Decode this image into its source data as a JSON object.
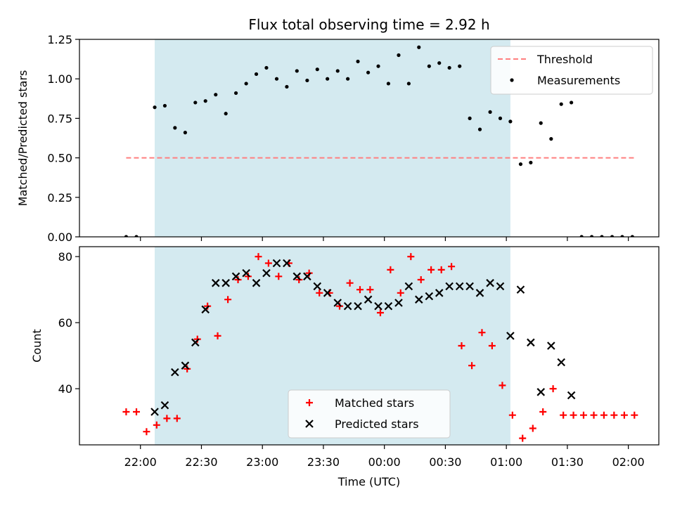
{
  "figure": {
    "title": "Flux total observing time = 2.92 h",
    "xlabel": "Time (UTC)",
    "x_ticks": [
      "22:00",
      "22:30",
      "23:00",
      "23:30",
      "00:00",
      "00:30",
      "01:00",
      "01:30",
      "02:00"
    ],
    "x_tick_hours": [
      0,
      0.5,
      1,
      1.5,
      2,
      2.5,
      3,
      3.5,
      4
    ],
    "x_origin": "22:00",
    "xlim_hours": [
      -0.5,
      4.25
    ],
    "observing_window_hours": [
      0.117,
      3.033
    ],
    "observing_window_color": "#d4eaf0"
  },
  "chart_data": [
    {
      "type": "scatter",
      "ylabel": "Matched/Predicted stars",
      "ylim": [
        0,
        1.25
      ],
      "yticks": [
        "0.00",
        "0.25",
        "0.50",
        "0.75",
        "1.00",
        "1.25"
      ],
      "ytick_values": [
        0,
        0.25,
        0.5,
        0.75,
        1.0,
        1.25
      ],
      "legend_position": "top-right",
      "threshold": {
        "name": "Threshold",
        "value": 0.5,
        "x_range_hours": [
          -0.117,
          4.05
        ],
        "color": "#ff7f7f",
        "style": "dashed"
      },
      "series": [
        {
          "name": "Measurements",
          "color": "#000000",
          "marker": "dot",
          "x_hours": [
            -0.117,
            -0.033,
            0.117,
            0.2,
            0.283,
            0.367,
            0.45,
            0.533,
            0.617,
            0.7,
            0.783,
            0.867,
            0.95,
            1.033,
            1.117,
            1.2,
            1.283,
            1.367,
            1.45,
            1.533,
            1.617,
            1.7,
            1.783,
            1.867,
            1.95,
            2.033,
            2.117,
            2.2,
            2.283,
            2.367,
            2.45,
            2.533,
            2.617,
            2.7,
            2.783,
            2.867,
            2.95,
            3.033,
            3.117,
            3.2,
            3.283,
            3.367,
            3.45,
            3.533,
            3.617,
            3.7,
            3.783,
            3.867,
            3.95,
            4.033
          ],
          "y": [
            0.0,
            0.0,
            0.82,
            0.83,
            0.69,
            0.66,
            0.85,
            0.86,
            0.9,
            0.78,
            0.91,
            0.97,
            1.03,
            1.07,
            1.0,
            0.95,
            1.05,
            0.99,
            1.06,
            1.0,
            1.05,
            1.0,
            1.11,
            1.04,
            1.08,
            0.97,
            1.15,
            0.97,
            1.2,
            1.08,
            1.1,
            1.07,
            1.08,
            0.75,
            0.68,
            0.79,
            0.75,
            0.73,
            0.46,
            0.47,
            0.72,
            0.62,
            0.84,
            0.85,
            0.0,
            0.0,
            0.0,
            0.0,
            0.0,
            0.0
          ]
        }
      ]
    },
    {
      "type": "scatter",
      "ylabel": "Count",
      "ylim": [
        23,
        83
      ],
      "yticks": [
        "40",
        "60",
        "80"
      ],
      "ytick_values": [
        40,
        60,
        80
      ],
      "legend_position": "lower-center",
      "series": [
        {
          "name": "Matched stars",
          "color": "#ff0000",
          "marker": "plus",
          "x_hours": [
            -0.117,
            -0.033,
            0.05,
            0.133,
            0.217,
            0.3,
            0.383,
            0.467,
            0.55,
            0.633,
            0.717,
            0.8,
            0.883,
            0.967,
            1.05,
            1.133,
            1.217,
            1.3,
            1.383,
            1.467,
            1.55,
            1.633,
            1.717,
            1.8,
            1.883,
            1.967,
            2.05,
            2.133,
            2.217,
            2.3,
            2.383,
            2.467,
            2.55,
            2.633,
            2.717,
            2.8,
            2.883,
            2.967,
            3.05,
            3.133,
            3.217,
            3.3,
            3.383,
            3.467,
            3.55,
            3.633,
            3.717,
            3.8,
            3.883,
            3.967,
            4.05
          ],
          "y": [
            33,
            33,
            27,
            29,
            31,
            31,
            46,
            55,
            65,
            56,
            67,
            73,
            74,
            80,
            78,
            74,
            78,
            73,
            75,
            69,
            69,
            65,
            72,
            70,
            70,
            63,
            76,
            69,
            80,
            73,
            76,
            76,
            77,
            53,
            47,
            57,
            53,
            41,
            32,
            25,
            28,
            33,
            40,
            32,
            32,
            32,
            32,
            32,
            32,
            32,
            32
          ]
        },
        {
          "name": "Predicted stars",
          "color": "#000000",
          "marker": "x",
          "x_hours": [
            0.117,
            0.2,
            0.283,
            0.367,
            0.45,
            0.533,
            0.617,
            0.7,
            0.783,
            0.867,
            0.95,
            1.033,
            1.117,
            1.2,
            1.283,
            1.367,
            1.45,
            1.533,
            1.617,
            1.7,
            1.783,
            1.867,
            1.95,
            2.033,
            2.117,
            2.2,
            2.283,
            2.367,
            2.45,
            2.533,
            2.617,
            2.7,
            2.783,
            2.867,
            2.95,
            3.033,
            3.117,
            3.2,
            3.283,
            3.367,
            3.45,
            3.533
          ],
          "y": [
            33,
            35,
            45,
            47,
            54,
            64,
            72,
            72,
            74,
            75,
            72,
            75,
            78,
            78,
            74,
            74,
            71,
            69,
            66,
            65,
            65,
            67,
            65,
            65,
            66,
            71,
            67,
            68,
            69,
            71,
            71,
            71,
            69,
            72,
            71,
            56,
            70,
            54,
            39,
            53,
            48,
            38
          ]
        }
      ]
    }
  ]
}
